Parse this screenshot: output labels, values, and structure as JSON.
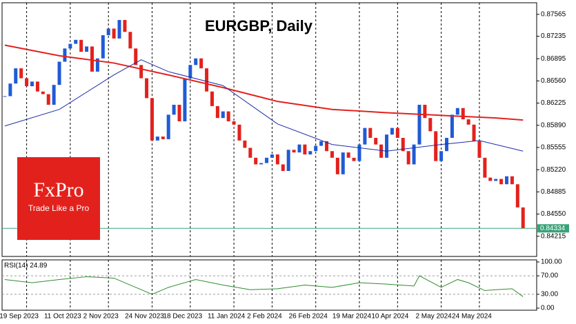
{
  "chart_data": {
    "type": "candlestick",
    "title": "EURGBP, Daily",
    "values": [
      0.8633,
      0.8652,
      0.8675,
      0.866,
      0.8648,
      0.8655,
      0.864,
      0.8636,
      0.862,
      0.865,
      0.8685,
      0.8705,
      0.8712,
      0.8718,
      0.87,
      0.8708,
      0.867,
      0.869,
      0.8725,
      0.8735,
      0.872,
      0.8748,
      0.873,
      0.8705,
      0.868,
      0.866,
      0.863,
      0.8566,
      0.8572,
      0.8568,
      0.8605,
      0.862,
      0.8595,
      0.866,
      0.868,
      0.869,
      0.8675,
      0.864,
      0.8618,
      0.86,
      0.861,
      0.8595,
      0.859,
      0.8566,
      0.8555,
      0.854,
      0.853,
      0.8532,
      0.854,
      0.8545,
      0.853,
      0.852,
      0.8552,
      0.8548,
      0.856,
      0.8545,
      0.855,
      0.8558,
      0.8565,
      0.855,
      0.854,
      0.8515,
      0.8548,
      0.854,
      0.8535,
      0.856,
      0.8585,
      0.857,
      0.856,
      0.854,
      0.8575,
      0.8585,
      0.857,
      0.855,
      0.853,
      0.856,
      0.862,
      0.86,
      0.858,
      0.8535,
      0.855,
      0.857,
      0.8605,
      0.8615,
      0.8598,
      0.859,
      0.8565,
      0.854,
      0.851,
      0.8505,
      0.8508,
      0.85,
      0.8512,
      0.85,
      0.8465,
      0.84334
    ],
    "up_color": "#1f5bd6",
    "down_color": "#e3211c",
    "ma_slow": {
      "color": "#e3211c",
      "x": [
        0,
        10,
        20,
        30,
        40,
        50,
        60,
        70,
        80,
        90,
        95
      ],
      "values": [
        0.871,
        0.8694,
        0.8683,
        0.8665,
        0.8646,
        0.8625,
        0.8613,
        0.8608,
        0.8604,
        0.86,
        0.8597
      ]
    },
    "ma_fast": {
      "color": "#1a2aa8",
      "x": [
        0,
        10,
        20,
        25,
        30,
        40,
        50,
        60,
        70,
        80,
        87,
        95
      ],
      "values": [
        0.8588,
        0.8613,
        0.8665,
        0.8688,
        0.867,
        0.8649,
        0.8591,
        0.856,
        0.855,
        0.856,
        0.8566,
        0.855
      ]
    },
    "last_price": 0.84334,
    "last_price_color": "#3aa27a",
    "xlim": [
      -0.5,
      97.5
    ],
    "ylim": [
      0.8391,
      0.8774
    ],
    "yticks": [
      0.87565,
      0.87235,
      0.86895,
      {
        "value": 0.8656,
        "label": "0.86560"
      },
      0.86225,
      {
        "value": 0.8589,
        "label": "0.85890"
      },
      0.85555,
      {
        "value": 0.8522,
        "label": "0.85220"
      },
      0.84885,
      {
        "value": 0.8455,
        "label": "0.84550"
      },
      0.84215
    ],
    "xticks": [
      {
        "value": 4,
        "label": "19 Sep 2023"
      },
      {
        "value": 12,
        "label": "11 Oct 2023"
      },
      {
        "value": 19,
        "label": "2 Nov 2023"
      },
      {
        "value": 27,
        "label": "24 Nov 2023"
      },
      {
        "value": 34,
        "label": "18 Dec 2023"
      },
      {
        "value": 42,
        "label": "11 Jan 2024"
      },
      {
        "value": 49,
        "label": "2 Feb 2024"
      },
      {
        "value": 57,
        "label": "26 Feb 2024"
      },
      {
        "value": 65,
        "label": "19 Mar 2024"
      },
      {
        "value": 72,
        "label": "10 Apr 2024"
      },
      {
        "value": 80,
        "label": "2 May 2024"
      },
      {
        "value": 87,
        "label": "24 May 2024"
      }
    ],
    "rsi": {
      "label": "RSI(14)",
      "value": 24.89,
      "color": "#2e8b2e",
      "x": [
        0,
        5,
        10,
        15,
        20,
        25,
        27,
        30,
        35,
        40,
        45,
        50,
        55,
        60,
        65,
        70,
        75,
        76,
        80,
        83,
        85,
        88,
        90,
        93,
        95
      ],
      "values": [
        62,
        55,
        62,
        68,
        65,
        40,
        30,
        45,
        62,
        50,
        40,
        42,
        50,
        45,
        55,
        52,
        48,
        70,
        45,
        62,
        55,
        38,
        40,
        42,
        24.89
      ],
      "ylim": [
        0,
        100
      ],
      "yticks": [
        {
          "value": 100,
          "label": "100.00"
        },
        {
          "value": 70,
          "label": "70.00"
        },
        {
          "value": 30,
          "label": "30.00"
        },
        {
          "value": 0,
          "label": "0.00"
        }
      ]
    }
  },
  "logo": {
    "name": "FxPro",
    "tagline": "Trade Like a Pro"
  }
}
